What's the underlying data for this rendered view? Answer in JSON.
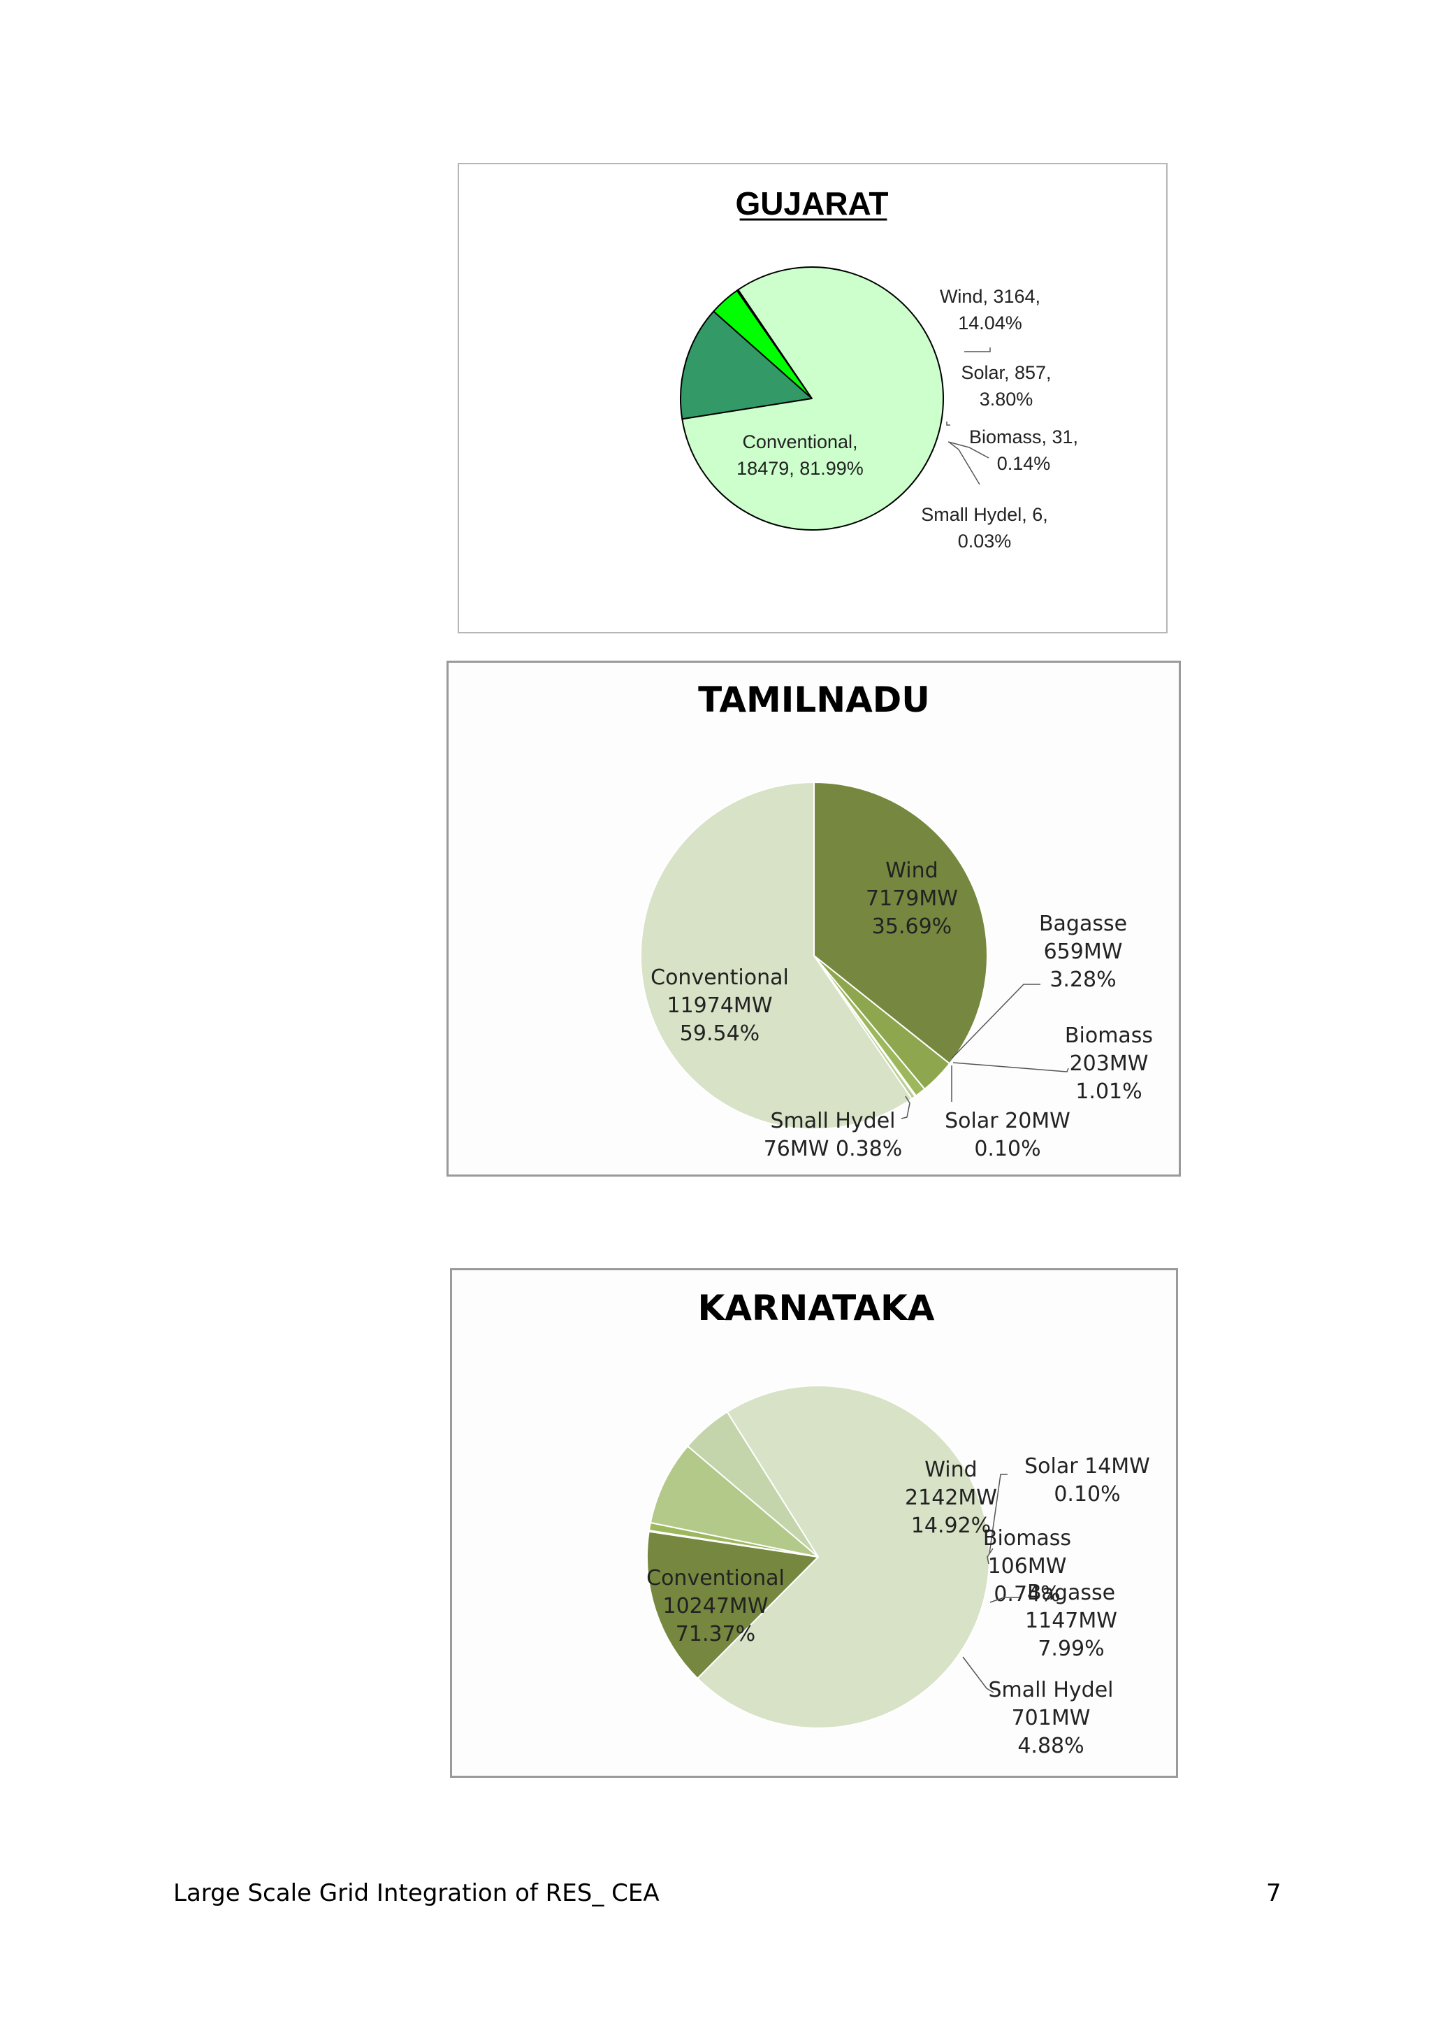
{
  "chart_data": [
    {
      "type": "pie",
      "title": "GUJARAT",
      "slices": [
        {
          "name": "Wind",
          "value": 3164,
          "percent": 14.04,
          "color": "#339966",
          "label_lines": [
            "Wind, 3164,",
            "14.04%"
          ]
        },
        {
          "name": "Solar",
          "value": 857,
          "percent": 3.8,
          "color": "#00ff00",
          "label_lines": [
            "Solar, 857,",
            "3.80%"
          ]
        },
        {
          "name": "Biomass",
          "value": 31,
          "percent": 0.14,
          "color": "#1f7a4a",
          "label_lines": [
            "Biomass, 31,",
            "0.14%"
          ]
        },
        {
          "name": "Small Hydel",
          "value": 6,
          "percent": 0.03,
          "color": "#003300",
          "label_lines": [
            "Small Hydel, 6,",
            "0.03%"
          ]
        },
        {
          "name": "Conventional",
          "value": 18479,
          "percent": 81.99,
          "color": "#ccffcc",
          "label_lines": [
            "Conventional,",
            "18479, 81.99%"
          ]
        }
      ]
    },
    {
      "type": "pie",
      "title": "TAMILNADU",
      "slices": [
        {
          "name": "Wind",
          "value": 7179,
          "unit": "MW",
          "percent": 35.69,
          "color": "#76883f",
          "label_lines": [
            "Wind",
            "7179MW",
            "35.69%"
          ]
        },
        {
          "name": "Bagasse",
          "value": 659,
          "unit": "MW",
          "percent": 3.28,
          "color": "#8ea64e",
          "label_lines": [
            "Bagasse",
            "659MW",
            "3.28%"
          ]
        },
        {
          "name": "Biomass",
          "value": 203,
          "unit": "MW",
          "percent": 1.01,
          "color": "#9db85c",
          "label_lines": [
            "Biomass",
            "203MW",
            "1.01%"
          ]
        },
        {
          "name": "Solar",
          "value": 20,
          "unit": "MW",
          "percent": 0.1,
          "color": "#aec878",
          "label_lines": [
            "Solar  20MW",
            "0.10%"
          ]
        },
        {
          "name": "Small Hydel",
          "value": 76,
          "unit": "MW",
          "percent": 0.38,
          "color": "#bccf92",
          "label_lines": [
            "Small Hydel",
            "76MW 0.38%"
          ]
        },
        {
          "name": "Conventional",
          "value": 11974,
          "unit": "MW",
          "percent": 59.54,
          "color": "#d7e2c6",
          "label_lines": [
            "Conventional",
            "11974MW",
            "59.54%"
          ]
        }
      ]
    },
    {
      "type": "pie",
      "title": "KARNATAKA",
      "slices": [
        {
          "name": "Wind",
          "value": 2142,
          "unit": "MW",
          "percent": 14.92,
          "color": "#76883f",
          "label_lines": [
            "Wind",
            "2142MW",
            "14.92%"
          ]
        },
        {
          "name": "Solar",
          "value": 14,
          "unit": "MW",
          "percent": 0.1,
          "color": "#8ea64e",
          "label_lines": [
            "Solar  14MW",
            "0.10%"
          ]
        },
        {
          "name": "Biomass",
          "value": 106,
          "unit": "MW",
          "percent": 0.74,
          "color": "#9db85c",
          "label_lines": [
            "Biomass",
            "106MW",
            "0.74%"
          ]
        },
        {
          "name": "Bagasse",
          "value": 1147,
          "unit": "MW",
          "percent": 7.99,
          "color": "#b2c98a",
          "label_lines": [
            "Bagasse",
            "1147MW",
            "7.99%"
          ]
        },
        {
          "name": "Small Hydel",
          "value": 701,
          "unit": "MW",
          "percent": 4.88,
          "color": "#c5d5ab",
          "label_lines": [
            "Small Hydel",
            "701MW",
            "4.88%"
          ]
        },
        {
          "name": "Conventional",
          "value": 10247,
          "unit": "MW",
          "percent": 71.37,
          "color": "#d7e2c6",
          "label_lines": [
            "Conventional",
            "10247MW",
            "71.37%"
          ]
        }
      ]
    }
  ],
  "footer": {
    "left": "Large Scale Grid Integration of RES_ CEA",
    "page_number": "7"
  }
}
